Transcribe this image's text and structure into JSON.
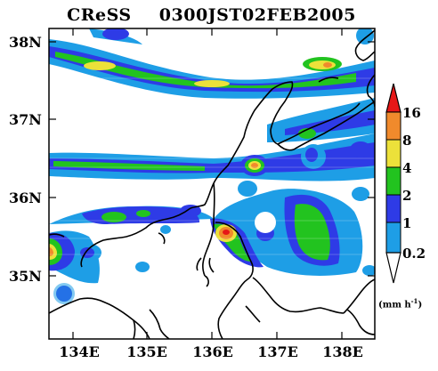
{
  "title": {
    "model": "CReSS",
    "time": "0300JST02FEB2005"
  },
  "map": {
    "lon_range": [
      133.5,
      138.5
    ],
    "lat_range": [
      34.2,
      38.2
    ],
    "y_ticks": [
      "38N",
      "37N",
      "36N",
      "35N"
    ],
    "x_ticks": [
      "134E",
      "135E",
      "136E",
      "137E",
      "138E"
    ],
    "field": "precipitation rate"
  },
  "colorbar": {
    "levels": [
      "0.2",
      "1",
      "2",
      "4",
      "8",
      "16"
    ],
    "unit": "(mm h",
    "unit_sup": "-1",
    "unit_close": ")",
    "colors": [
      "#1e9ee6",
      "#2e3be6",
      "#22c31f",
      "#ece13a",
      "#f08a2c",
      "#e61717"
    ]
  }
}
